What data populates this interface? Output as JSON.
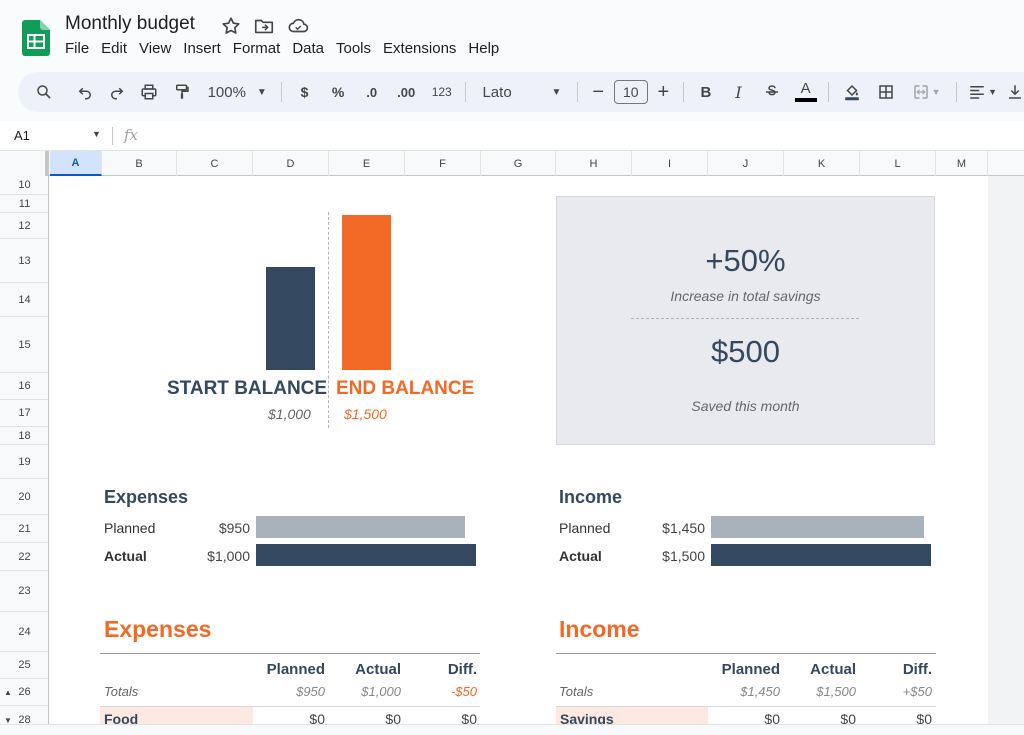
{
  "app": {
    "doc_title": "Monthly budget",
    "menu": [
      "File",
      "Edit",
      "View",
      "Insert",
      "Format",
      "Data",
      "Tools",
      "Extensions",
      "Help"
    ]
  },
  "toolbar": {
    "zoom": "100%",
    "currency": "$",
    "percent": "%",
    "dec_decrease": ".0",
    "dec_increase": ".00",
    "format_123": "123",
    "font": "Lato",
    "font_size": "10",
    "bold": "B",
    "italic": "I",
    "text_color_letter": "A"
  },
  "formula_bar": {
    "cell_ref": "A1",
    "fx": "fx"
  },
  "grid": {
    "columns": [
      "A",
      "B",
      "C",
      "D",
      "E",
      "F",
      "G",
      "H",
      "I",
      "J",
      "K",
      "L",
      "M"
    ],
    "rows": [
      "10",
      "11",
      "12",
      "13",
      "14",
      "15",
      "16",
      "17",
      "18",
      "19",
      "20",
      "21",
      "22",
      "23",
      "24",
      "25",
      "26",
      "28"
    ]
  },
  "balance": {
    "start_label": "START BALANCE",
    "start_value": "$1,000",
    "end_label": "END BALANCE",
    "end_value": "$1,500"
  },
  "savings": {
    "percent": "+50%",
    "percent_caption": "Increase in total savings",
    "amount": "$500",
    "amount_caption": "Saved this month"
  },
  "summary": {
    "expenses": {
      "title": "Expenses",
      "planned_label": "Planned",
      "planned_value": "$950",
      "actual_label": "Actual",
      "actual_value": "$1,000"
    },
    "income": {
      "title": "Income",
      "planned_label": "Planned",
      "planned_value": "$1,450",
      "actual_label": "Actual",
      "actual_value": "$1,500"
    }
  },
  "expenses_table": {
    "title": "Expenses",
    "headers": [
      "Planned",
      "Actual",
      "Diff."
    ],
    "totals_label": "Totals",
    "totals": [
      "$950",
      "$1,000",
      "-$50"
    ],
    "first_row": {
      "label": "Food",
      "values": [
        "$0",
        "$0",
        "$0"
      ]
    }
  },
  "income_table": {
    "title": "Income",
    "headers": [
      "Planned",
      "Actual",
      "Diff."
    ],
    "totals_label": "Totals",
    "totals": [
      "$1,450",
      "$1,500",
      "+$50"
    ],
    "first_row": {
      "label": "Savings",
      "values": [
        "$0",
        "$0",
        "$0"
      ]
    }
  },
  "colors": {
    "navy": "#344860",
    "orange": "#f26a25",
    "planned_bar": "#a9b1bc",
    "peach": "#fde9e1",
    "sheets_green": "#0f9d58"
  }
}
